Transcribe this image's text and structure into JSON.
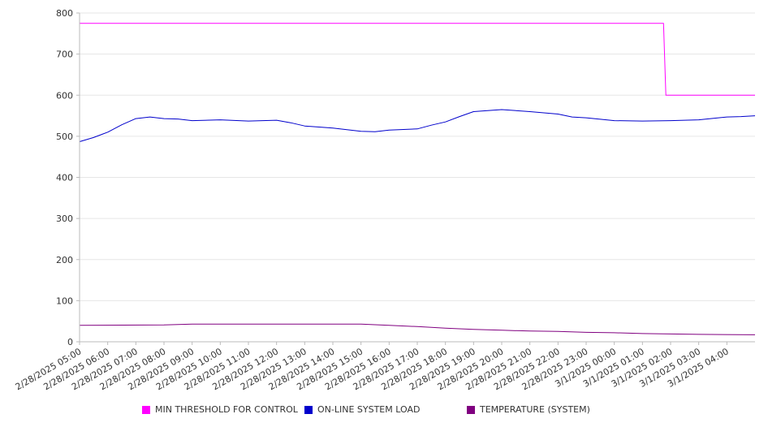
{
  "chart_data": {
    "type": "line",
    "title": "",
    "xlabel": "",
    "ylabel": "",
    "ylim": [
      0,
      800
    ],
    "yticks": [
      0,
      100,
      200,
      300,
      400,
      500,
      600,
      700,
      800
    ],
    "grid": true,
    "legend_position": "bottom",
    "x_tick_labels": [
      "2/28/2025 05:00",
      "2/28/2025 06:00",
      "2/28/2025 07:00",
      "2/28/2025 08:00",
      "2/28/2025 09:00",
      "2/28/2025 10:00",
      "2/28/2025 11:00",
      "2/28/2025 12:00",
      "2/28/2025 13:00",
      "2/28/2025 14:00",
      "2/28/2025 15:00",
      "2/28/2025 16:00",
      "2/28/2025 17:00",
      "2/28/2025 18:00",
      "2/28/2025 19:00",
      "2/28/2025 20:00",
      "2/28/2025 21:00",
      "2/28/2025 22:00",
      "2/28/2025 23:00",
      "3/1/2025 00:00",
      "3/1/2025 01:00",
      "3/1/2025 02:00",
      "3/1/2025 03:00",
      "3/1/2025 04:00"
    ],
    "x_range": [
      "2/28/2025 05:00",
      "3/1/2025 05:00"
    ],
    "series": [
      {
        "name": "MIN THRESHOLD FOR CONTROL",
        "color": "#ff00ff",
        "points": [
          {
            "x": "2/28/2025 05:00",
            "y": 775
          },
          {
            "x": "3/1/2025 01:45",
            "y": 775
          },
          {
            "x": "3/1/2025 01:50",
            "y": 600
          },
          {
            "x": "3/1/2025 05:00",
            "y": 600
          }
        ]
      },
      {
        "name": "ON-LINE SYSTEM LOAD",
        "color": "#0000cc",
        "points": [
          {
            "x": "2/28/2025 05:00",
            "y": 487
          },
          {
            "x": "2/28/2025 05:30",
            "y": 497
          },
          {
            "x": "2/28/2025 06:00",
            "y": 510
          },
          {
            "x": "2/28/2025 06:30",
            "y": 528
          },
          {
            "x": "2/28/2025 07:00",
            "y": 543
          },
          {
            "x": "2/28/2025 07:30",
            "y": 547
          },
          {
            "x": "2/28/2025 08:00",
            "y": 543
          },
          {
            "x": "2/28/2025 08:30",
            "y": 542
          },
          {
            "x": "2/28/2025 09:00",
            "y": 538
          },
          {
            "x": "2/28/2025 10:00",
            "y": 540
          },
          {
            "x": "2/28/2025 11:00",
            "y": 537
          },
          {
            "x": "2/28/2025 12:00",
            "y": 539
          },
          {
            "x": "2/28/2025 12:30",
            "y": 533
          },
          {
            "x": "2/28/2025 13:00",
            "y": 525
          },
          {
            "x": "2/28/2025 14:00",
            "y": 520
          },
          {
            "x": "2/28/2025 15:00",
            "y": 512
          },
          {
            "x": "2/28/2025 15:30",
            "y": 511
          },
          {
            "x": "2/28/2025 16:00",
            "y": 515
          },
          {
            "x": "2/28/2025 17:00",
            "y": 518
          },
          {
            "x": "2/28/2025 17:30",
            "y": 527
          },
          {
            "x": "2/28/2025 18:00",
            "y": 535
          },
          {
            "x": "2/28/2025 18:30",
            "y": 548
          },
          {
            "x": "2/28/2025 19:00",
            "y": 560
          },
          {
            "x": "2/28/2025 20:00",
            "y": 565
          },
          {
            "x": "2/28/2025 21:00",
            "y": 560
          },
          {
            "x": "2/28/2025 22:00",
            "y": 554
          },
          {
            "x": "2/28/2025 22:30",
            "y": 547
          },
          {
            "x": "2/28/2025 23:00",
            "y": 545
          },
          {
            "x": "3/1/2025 00:00",
            "y": 538
          },
          {
            "x": "3/1/2025 01:00",
            "y": 537
          },
          {
            "x": "3/1/2025 02:00",
            "y": 538
          },
          {
            "x": "3/1/2025 03:00",
            "y": 540
          },
          {
            "x": "3/1/2025 04:00",
            "y": 547
          },
          {
            "x": "3/1/2025 04:30",
            "y": 548
          },
          {
            "x": "3/1/2025 05:00",
            "y": 550
          }
        ]
      },
      {
        "name": "TEMPERATURE (SYSTEM)",
        "color": "#800080",
        "points": [
          {
            "x": "2/28/2025 05:00",
            "y": 40
          },
          {
            "x": "2/28/2025 08:00",
            "y": 41
          },
          {
            "x": "2/28/2025 09:00",
            "y": 43
          },
          {
            "x": "2/28/2025 15:00",
            "y": 43
          },
          {
            "x": "2/28/2025 16:00",
            "y": 40
          },
          {
            "x": "2/28/2025 17:00",
            "y": 37
          },
          {
            "x": "2/28/2025 18:00",
            "y": 33
          },
          {
            "x": "2/28/2025 19:00",
            "y": 30
          },
          {
            "x": "2/28/2025 20:00",
            "y": 28
          },
          {
            "x": "2/28/2025 21:00",
            "y": 26
          },
          {
            "x": "2/28/2025 22:00",
            "y": 25
          },
          {
            "x": "2/28/2025 23:00",
            "y": 23
          },
          {
            "x": "3/1/2025 00:00",
            "y": 22
          },
          {
            "x": "3/1/2025 01:00",
            "y": 20
          },
          {
            "x": "3/1/2025 02:00",
            "y": 19
          },
          {
            "x": "3/1/2025 03:00",
            "y": 18
          },
          {
            "x": "3/1/2025 05:00",
            "y": 17
          }
        ]
      }
    ]
  }
}
